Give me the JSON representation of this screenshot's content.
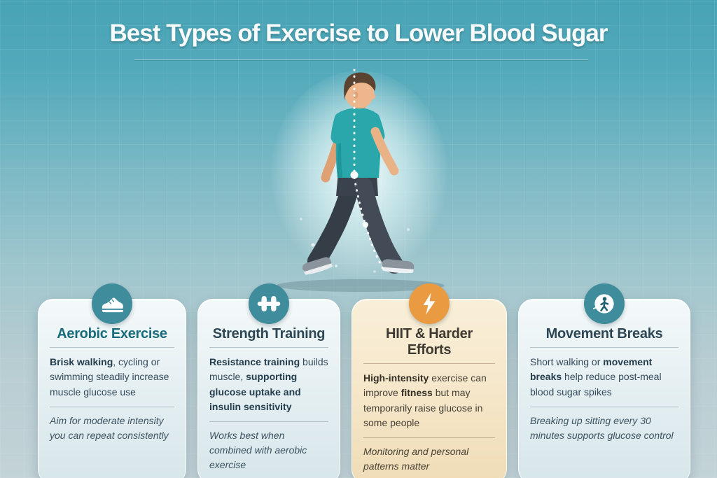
{
  "page": {
    "title": "Best Types of Exercise to Lower Blood Sugar"
  },
  "colors": {
    "background_top": "#47a3b5",
    "background_bottom": "#c3d3d7",
    "accent_teal": "#3f8d9c",
    "accent_orange": "#ea9a40",
    "card_blue_bg": "#e9f2f4",
    "card_cream_bg": "#f5e7ca",
    "heading_teal": "#176b7a",
    "heading_dark": "#2d4754",
    "title_text": "#f7fbfc"
  },
  "illustration": {
    "icon": "walking-man-illustration"
  },
  "cards": [
    {
      "icon": "sneaker-icon",
      "icon_color": "#3f8d9c",
      "title": "Aerobic Exercise",
      "body_segments": [
        {
          "t": "Brisk walking",
          "b": true
        },
        {
          "t": ", cycling or swimming steadily increase muscle glucose use",
          "b": false
        }
      ],
      "note": "Aim for moderate intensity you can repeat consistently"
    },
    {
      "icon": "dumbbell-icon",
      "icon_color": "#3f8d9c",
      "title": "Strength Training",
      "body_segments": [
        {
          "t": "Resistance training",
          "b": true
        },
        {
          "t": " builds muscle, ",
          "b": false
        },
        {
          "t": "supporting glucose uptake and insulin sensitivity",
          "b": true
        }
      ],
      "note": "Works best when combined with aerobic exercise"
    },
    {
      "icon": "lightning-icon",
      "icon_color": "#ea9a40",
      "title": "HIIT & Harder Efforts",
      "body_segments": [
        {
          "t": "High-intensity",
          "b": true
        },
        {
          "t": " exercise can improve ",
          "b": false
        },
        {
          "t": "fitness",
          "b": true
        },
        {
          "t": " but may temporarily raise glucose in some people",
          "b": false
        }
      ],
      "note": "Monitoring and personal patterns matter"
    },
    {
      "icon": "walking-person-icon",
      "icon_color": "#3f8d9c",
      "title": "Movement Breaks",
      "body_segments": [
        {
          "t": "Short walking or ",
          "b": false
        },
        {
          "t": "movement breaks",
          "b": true
        },
        {
          "t": " help reduce post-meal blood sugar spikes",
          "b": false
        }
      ],
      "note": "Breaking up sitting every 30 minutes supports glucose control"
    }
  ]
}
